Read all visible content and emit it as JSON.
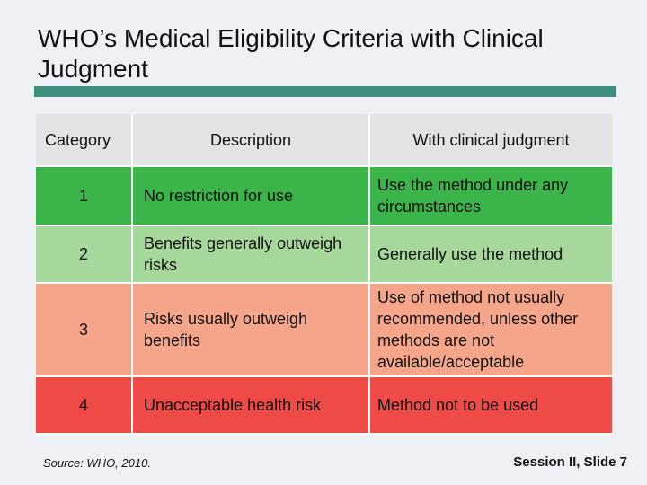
{
  "title": "WHO’s Medical Eligibility Criteria with Clinical Judgment",
  "table": {
    "headers": [
      "Category",
      "Description",
      "With clinical judgment"
    ],
    "rows": [
      {
        "category": "1",
        "description": "No restriction for use",
        "judgment": "Use the method under any circumstances",
        "color": "#3bb54a"
      },
      {
        "category": "2",
        "description": "Benefits generally outweigh risks",
        "judgment": "Generally use the method",
        "color": "#a5d89a"
      },
      {
        "category": "3",
        "description": "Risks usually outweigh benefits",
        "judgment": "Use of method not usually recommended, unless other methods are not available/acceptable",
        "color": "#f5a58a"
      },
      {
        "category": "4",
        "description": "Unacceptable health risk",
        "judgment": "Method not to be used",
        "color": "#ee4b47"
      }
    ]
  },
  "source": "Source: WHO, 2010.",
  "slide_label": "Session II, Slide 7",
  "colors": {
    "background": "#eef0f6",
    "title_rule": "#3e8f7c",
    "header_bg": "#e3e3e3"
  }
}
